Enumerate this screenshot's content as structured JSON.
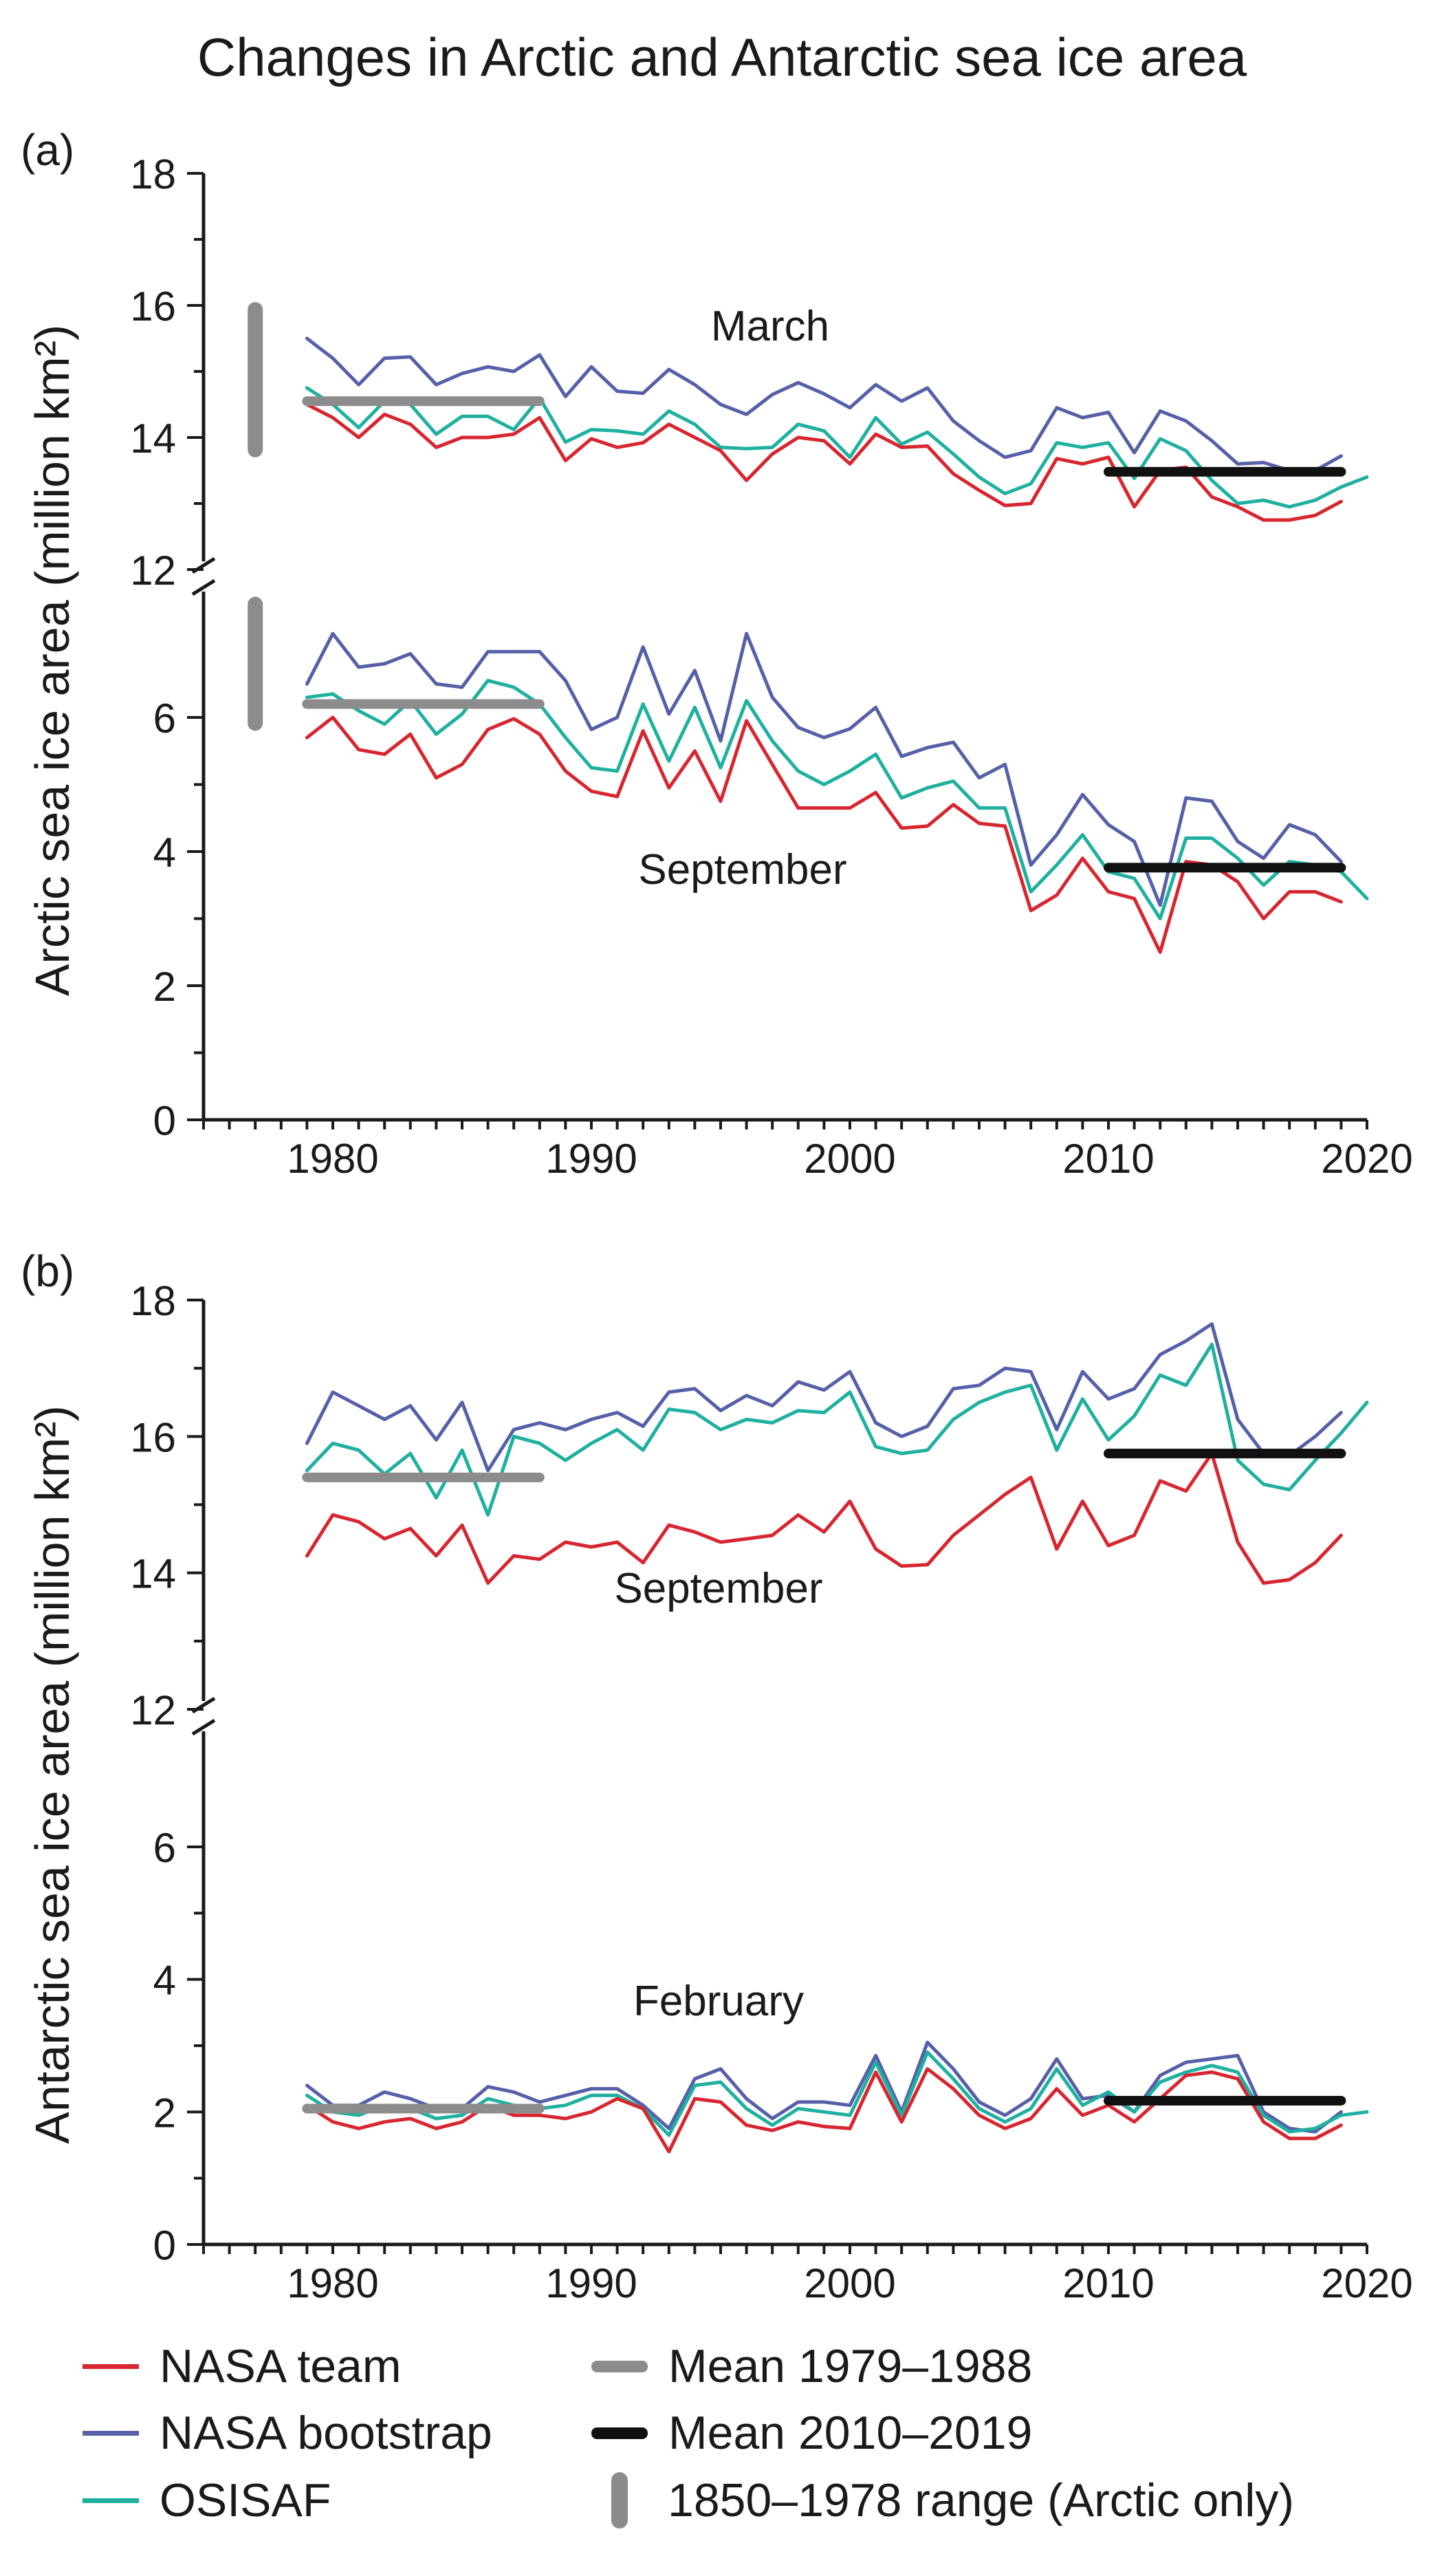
{
  "title": "Changes in Arctic and Antarctic sea ice area",
  "colors": {
    "nasa_team": "#d7262f",
    "nasa_bootstrap": "#5560a8",
    "osisaf": "#1fb0a0",
    "mean_early": "#8c8c8c",
    "mean_late": "#111111",
    "range": "#8c8c8c"
  },
  "legend": [
    {
      "key": "nasa_team",
      "label": "NASA team",
      "style": "line"
    },
    {
      "key": "nasa_bootstrap",
      "label": "NASA bootstrap",
      "style": "line"
    },
    {
      "key": "osisaf",
      "label": "OSISAF",
      "style": "line"
    },
    {
      "key": "mean_early",
      "label": "Mean 1979–1988",
      "style": "thick"
    },
    {
      "key": "mean_late",
      "label": "Mean 2010–2019",
      "style": "thick"
    },
    {
      "key": "range",
      "label": "1850–1978 range (Arctic only)",
      "style": "bar"
    }
  ],
  "chart_data": [
    {
      "type": "line",
      "panel": "(a)",
      "ylabel": "Arctic sea ice area (million km²)",
      "xlim": [
        1975,
        2020
      ],
      "xticks": [
        1980,
        1990,
        2000,
        2010,
        2020
      ],
      "y_axis_broken": true,
      "upper": {
        "label": "March",
        "ylim": [
          12,
          18
        ],
        "yticks": [
          12,
          14,
          16,
          18
        ],
        "range_1850_1978": [
          13.7,
          16.05
        ],
        "mean_1979_1988": 14.55,
        "mean_2010_2019": 13.48,
        "series": [
          {
            "key": "nasa_bootstrap",
            "start": 1979,
            "values": [
              15.5,
              15.2,
              14.8,
              15.2,
              15.22,
              14.8,
              14.97,
              15.07,
              15.0,
              15.25,
              14.62,
              15.07,
              14.7,
              14.67,
              15.03,
              14.8,
              14.5,
              14.35,
              14.65,
              14.83,
              14.66,
              14.45,
              14.8,
              14.55,
              14.75,
              14.25,
              13.95,
              13.7,
              13.8,
              14.45,
              14.3,
              14.38,
              13.77,
              14.4,
              14.25,
              13.95,
              13.6,
              13.62,
              13.5,
              13.5,
              13.72
            ]
          },
          {
            "key": "osisaf",
            "start": 1979,
            "values": [
              14.75,
              14.5,
              14.15,
              14.55,
              14.5,
              14.05,
              14.32,
              14.32,
              14.12,
              14.6,
              13.93,
              14.12,
              14.1,
              14.05,
              14.4,
              14.2,
              13.85,
              13.83,
              13.85,
              14.2,
              14.1,
              13.7,
              14.3,
              13.9,
              14.08,
              13.75,
              13.4,
              13.15,
              13.3,
              13.92,
              13.85,
              13.92,
              13.38,
              13.98,
              13.8,
              13.35,
              13.0,
              13.05,
              12.95,
              13.05,
              13.25,
              13.4
            ]
          },
          {
            "key": "nasa_team",
            "start": 1979,
            "values": [
              14.5,
              14.3,
              14.0,
              14.35,
              14.2,
              13.85,
              14.0,
              14.0,
              14.05,
              14.3,
              13.65,
              13.98,
              13.85,
              13.92,
              14.2,
              14.0,
              13.8,
              13.35,
              13.75,
              14.0,
              13.95,
              13.6,
              14.05,
              13.85,
              13.87,
              13.45,
              13.2,
              12.97,
              13.0,
              13.68,
              13.6,
              13.7,
              12.95,
              13.5,
              13.55,
              13.1,
              12.95,
              12.75,
              12.75,
              12.82,
              13.03
            ]
          }
        ]
      },
      "lower": {
        "label": "September",
        "ylim": [
          0,
          7.5
        ],
        "yticks": [
          0,
          2,
          4,
          6
        ],
        "range_1850_1978": [
          5.8,
          7.8
        ],
        "mean_1979_1988": 6.2,
        "mean_2010_2019": 3.76,
        "series": [
          {
            "key": "nasa_bootstrap",
            "start": 1979,
            "values": [
              6.5,
              7.25,
              6.75,
              6.8,
              6.95,
              6.5,
              6.45,
              6.98,
              6.98,
              6.98,
              6.55,
              5.82,
              6.0,
              7.05,
              6.05,
              6.7,
              5.65,
              7.25,
              6.3,
              5.85,
              5.7,
              5.83,
              6.15,
              5.42,
              5.55,
              5.63,
              5.1,
              5.3,
              3.8,
              4.25,
              4.85,
              4.4,
              4.15,
              3.2,
              4.8,
              4.75,
              4.15,
              3.9,
              4.4,
              4.25,
              3.85
            ]
          },
          {
            "key": "osisaf",
            "start": 1979,
            "values": [
              6.3,
              6.35,
              6.1,
              5.9,
              6.25,
              5.75,
              6.05,
              6.55,
              6.45,
              6.2,
              5.7,
              5.25,
              5.2,
              6.2,
              5.35,
              6.15,
              5.25,
              6.25,
              5.65,
              5.2,
              5.0,
              5.2,
              5.45,
              4.8,
              4.95,
              5.05,
              4.65,
              4.65,
              3.4,
              3.8,
              4.25,
              3.7,
              3.6,
              3.0,
              4.2,
              4.2,
              3.9,
              3.5,
              3.85,
              3.8,
              3.7,
              3.3
            ]
          },
          {
            "key": "nasa_team",
            "start": 1979,
            "values": [
              5.7,
              6.0,
              5.52,
              5.45,
              5.75,
              5.1,
              5.3,
              5.82,
              5.98,
              5.75,
              5.2,
              4.9,
              4.82,
              5.8,
              4.95,
              5.5,
              4.75,
              5.95,
              5.3,
              4.65,
              4.65,
              4.65,
              4.88,
              4.35,
              4.38,
              4.7,
              4.42,
              4.38,
              3.12,
              3.35,
              3.9,
              3.4,
              3.3,
              2.5,
              3.85,
              3.8,
              3.55,
              3.0,
              3.4,
              3.4,
              3.25
            ]
          }
        ]
      }
    },
    {
      "type": "line",
      "panel": "(b)",
      "ylabel": "Antarctic sea ice area (million km²)",
      "xlim": [
        1975,
        2020
      ],
      "xticks": [
        1980,
        1990,
        2000,
        2010,
        2020
      ],
      "y_axis_broken": true,
      "upper": {
        "label": "September",
        "ylim": [
          12,
          18
        ],
        "yticks": [
          12,
          14,
          16,
          18
        ],
        "mean_1979_1988": 15.4,
        "mean_2010_2019": 15.75,
        "series": [
          {
            "key": "nasa_bootstrap",
            "start": 1979,
            "values": [
              15.9,
              16.65,
              16.45,
              16.25,
              16.45,
              15.95,
              16.5,
              15.5,
              16.1,
              16.2,
              16.1,
              16.25,
              16.35,
              16.15,
              16.65,
              16.7,
              16.38,
              16.6,
              16.45,
              16.8,
              16.68,
              16.95,
              16.2,
              16.0,
              16.15,
              16.7,
              16.75,
              17.0,
              16.95,
              16.1,
              16.95,
              16.55,
              16.7,
              17.2,
              17.4,
              17.65,
              16.25,
              15.75,
              15.72,
              16.0,
              16.35
            ]
          },
          {
            "key": "osisaf",
            "start": 1979,
            "values": [
              15.5,
              15.9,
              15.8,
              15.45,
              15.75,
              15.1,
              15.8,
              14.85,
              16.0,
              15.9,
              15.65,
              15.9,
              16.1,
              15.8,
              16.4,
              16.35,
              16.1,
              16.25,
              16.2,
              16.38,
              16.35,
              16.65,
              15.85,
              15.75,
              15.8,
              16.25,
              16.5,
              16.65,
              16.75,
              15.8,
              16.55,
              15.95,
              16.3,
              16.9,
              16.75,
              17.35,
              15.65,
              15.3,
              15.22,
              15.65,
              16.05,
              16.5
            ]
          },
          {
            "key": "nasa_team",
            "start": 1979,
            "values": [
              14.25,
              14.85,
              14.75,
              14.5,
              14.65,
              14.25,
              14.7,
              13.85,
              14.25,
              14.2,
              14.45,
              14.38,
              14.45,
              14.15,
              14.7,
              14.6,
              14.45,
              14.5,
              14.55,
              14.85,
              14.6,
              15.05,
              14.35,
              14.1,
              14.12,
              14.55,
              14.85,
              15.15,
              15.4,
              14.35,
              15.05,
              14.4,
              14.55,
              15.35,
              15.2,
              15.75,
              14.45,
              13.85,
              13.9,
              14.15,
              14.55
            ]
          }
        ]
      },
      "lower": {
        "label": "February",
        "ylim": [
          0,
          7.5
        ],
        "yticks": [
          0,
          2,
          4,
          6
        ],
        "mean_1979_1988": 2.05,
        "mean_2010_2019": 2.17,
        "series": [
          {
            "key": "nasa_bootstrap",
            "start": 1979,
            "values": [
              2.4,
              2.1,
              2.1,
              2.3,
              2.2,
              2.05,
              2.05,
              2.38,
              2.3,
              2.15,
              2.25,
              2.35,
              2.35,
              2.1,
              1.75,
              2.5,
              2.65,
              2.2,
              1.9,
              2.15,
              2.15,
              2.1,
              2.85,
              2.0,
              3.05,
              2.65,
              2.15,
              1.95,
              2.2,
              2.8,
              2.2,
              2.25,
              2.0,
              2.55,
              2.75,
              2.8,
              2.85,
              2.0,
              1.75,
              1.7,
              2.0
            ]
          },
          {
            "key": "osisaf",
            "start": 1979,
            "values": [
              2.25,
              2.0,
              1.95,
              2.1,
              2.05,
              1.9,
              1.95,
              2.2,
              2.1,
              2.05,
              2.1,
              2.25,
              2.25,
              2.05,
              1.65,
              2.4,
              2.45,
              2.05,
              1.8,
              2.05,
              2.0,
              1.95,
              2.75,
              1.95,
              2.9,
              2.5,
              2.05,
              1.85,
              2.05,
              2.65,
              2.1,
              2.3,
              2.0,
              2.45,
              2.6,
              2.7,
              2.6,
              1.95,
              1.7,
              1.75,
              1.95,
              2.0
            ]
          },
          {
            "key": "nasa_team",
            "start": 1979,
            "values": [
              2.1,
              1.85,
              1.75,
              1.85,
              1.9,
              1.75,
              1.85,
              2.1,
              1.95,
              1.95,
              1.9,
              2.0,
              2.2,
              2.05,
              1.4,
              2.2,
              2.15,
              1.8,
              1.72,
              1.85,
              1.78,
              1.75,
              2.6,
              1.85,
              2.65,
              2.35,
              1.95,
              1.75,
              1.9,
              2.35,
              1.95,
              2.1,
              1.85,
              2.2,
              2.55,
              2.6,
              2.5,
              1.85,
              1.6,
              1.6,
              1.8
            ]
          }
        ]
      }
    }
  ]
}
